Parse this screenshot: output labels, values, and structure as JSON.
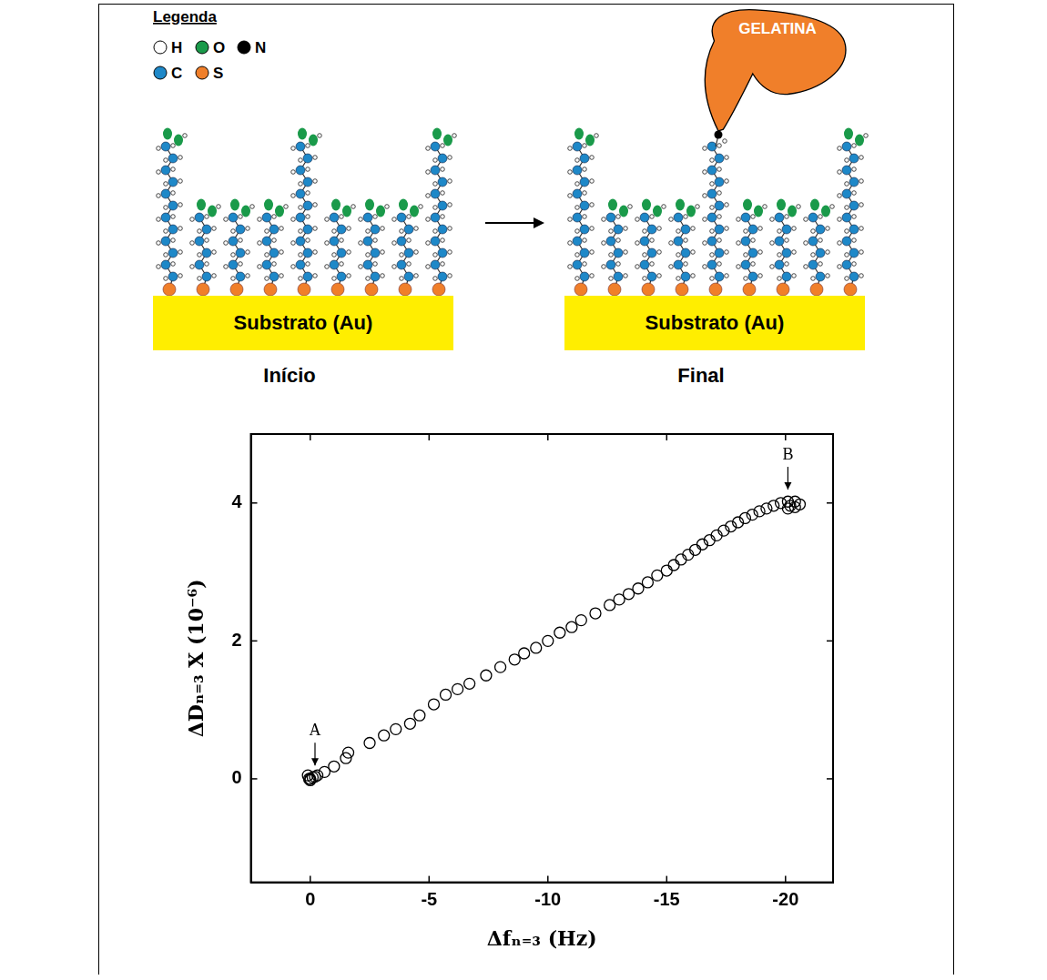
{
  "diagram": {
    "legend_title": "Legenda",
    "legend_items": [
      {
        "label": "H",
        "color": "#ffffff"
      },
      {
        "label": "O",
        "color": "#1a9a4a"
      },
      {
        "label": "N",
        "color": "#000000"
      },
      {
        "label": "C",
        "color": "#1e88c8"
      },
      {
        "label": "S",
        "color": "#f07f2a"
      }
    ],
    "gelatin_label": "GELATINA",
    "panels": [
      {
        "substrate": "Substrato (Au)",
        "caption": "Início"
      },
      {
        "substrate": "Substrato (Au)",
        "caption": "Final"
      }
    ]
  },
  "chart_data": {
    "type": "scatter",
    "x_label": "Δfₙ₌₃ (Hz)",
    "y_label": "ΔDₙ₌₃ X (10⁻⁶)",
    "x": [
      0,
      -0.1,
      0.1,
      0,
      -0.2,
      0.05,
      -0.3,
      -0.6,
      -1.0,
      -1.5,
      -1.6,
      -2.5,
      -3.1,
      -3.6,
      -4.2,
      -4.6,
      -5.2,
      -5.7,
      -6.2,
      -6.7,
      -7.4,
      -8.0,
      -8.6,
      -9.0,
      -9.5,
      -10.0,
      -10.5,
      -11.0,
      -11.4,
      -12.0,
      -12.6,
      -13.0,
      -13.4,
      -13.8,
      -14.2,
      -14.6,
      -15.0,
      -15.3,
      -15.6,
      -15.9,
      -16.2,
      -16.5,
      -16.8,
      -17.1,
      -17.4,
      -17.7,
      -18.0,
      -18.3,
      -18.6,
      -18.9,
      -19.2,
      -19.5,
      -19.8,
      -20.1,
      -20.4,
      -20.6,
      -20.4,
      -20.1,
      -20.2
    ],
    "values": [
      0,
      0.02,
      0.05,
      -0.02,
      0.03,
      0.0,
      0.05,
      0.1,
      0.18,
      0.3,
      0.38,
      0.52,
      0.63,
      0.72,
      0.8,
      0.92,
      1.08,
      1.22,
      1.3,
      1.38,
      1.5,
      1.62,
      1.73,
      1.82,
      1.9,
      2.0,
      2.12,
      2.2,
      2.3,
      2.4,
      2.52,
      2.6,
      2.68,
      2.76,
      2.85,
      2.95,
      3.02,
      3.1,
      3.18,
      3.25,
      3.32,
      3.4,
      3.46,
      3.53,
      3.6,
      3.66,
      3.72,
      3.78,
      3.83,
      3.88,
      3.92,
      3.96,
      4.0,
      4.02,
      4.02,
      3.98,
      3.94,
      3.92,
      3.96
    ],
    "color": "#000000",
    "marker": "circle",
    "xlim": [
      2.5,
      -22
    ],
    "xticks": [
      0,
      -5,
      -10,
      -15,
      -20
    ],
    "ylim": [
      -1.5,
      5
    ],
    "yticks": [
      0,
      2,
      4
    ],
    "grid": false,
    "annotations": [
      {
        "text": "A",
        "x": -0.2,
        "y": 0.05
      },
      {
        "text": "B",
        "x": -20.1,
        "y": 4.05
      }
    ]
  }
}
